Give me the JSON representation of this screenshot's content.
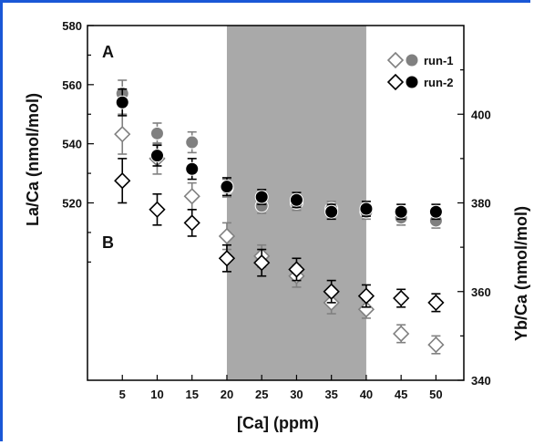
{
  "chart_data": {
    "type": "scatter",
    "xlabel": "[Ca]  (ppm)",
    "ylabel_left": "La/Ca  (nmol/mol)",
    "ylabel_right": "Yb/Ca  (nmol/mol)",
    "x_ticks": [
      "5",
      "10",
      "15",
      "20",
      "25",
      "30",
      "35",
      "40",
      "45",
      "50"
    ],
    "y_left_ticks": [
      "580",
      "560",
      "540",
      "520"
    ],
    "y_right_ticks": [
      "400",
      "380",
      "360",
      "340"
    ],
    "xlim": [
      0,
      54
    ],
    "ylim_left": [
      460,
      580
    ],
    "ylim_right": [
      340,
      420
    ],
    "shaded_range": [
      20,
      40
    ],
    "shade_color": "#a9a9a9",
    "panel_labels": [
      "A",
      "B"
    ],
    "legend": [
      "run-1",
      "run-2"
    ],
    "colors": {
      "run1": "#808080",
      "run2": "#000000",
      "frame": "#1a57d6"
    },
    "series": [
      {
        "name": "run-1",
        "axis": "left",
        "marker": "circle",
        "x": [
          5,
          10,
          15,
          20,
          25,
          30,
          35,
          40,
          45,
          50
        ],
        "y": [
          557,
          543.5,
          540.5,
          525,
          519,
          520,
          518,
          517,
          515,
          514
        ],
        "err": [
          4.5,
          3.5,
          3.5,
          3,
          2.5,
          2.5,
          2.5,
          2.5,
          2.5,
          2.5
        ]
      },
      {
        "name": "run-2",
        "axis": "left",
        "marker": "circle",
        "x": [
          5,
          10,
          15,
          20,
          25,
          30,
          35,
          40,
          45,
          50
        ],
        "y": [
          554,
          536,
          531.5,
          525.5,
          522,
          521,
          517,
          518,
          517,
          517
        ],
        "err": [
          4.5,
          3.5,
          3.5,
          3,
          2.5,
          2.5,
          2.5,
          2.5,
          2.5,
          2.5
        ]
      },
      {
        "name": "run-1",
        "axis": "right",
        "marker": "diamond",
        "x": [
          5,
          10,
          15,
          20,
          25,
          30,
          35,
          40,
          45,
          50
        ],
        "y": [
          395.5,
          390,
          381.5,
          372.5,
          368,
          363.5,
          357.5,
          356,
          350.5,
          348
        ],
        "err": [
          4.5,
          3.5,
          3,
          3,
          2.5,
          2.5,
          2.5,
          2,
          2,
          2
        ]
      },
      {
        "name": "run-2",
        "axis": "right",
        "marker": "diamond",
        "x": [
          5,
          10,
          15,
          20,
          25,
          30,
          35,
          40,
          45,
          50
        ],
        "y": [
          385,
          378.5,
          375.5,
          367.5,
          366.5,
          365,
          360,
          359,
          358.5,
          357.5
        ],
        "err": [
          5,
          3.5,
          3,
          3,
          3,
          2.5,
          2.5,
          2.5,
          2,
          2
        ]
      }
    ]
  }
}
